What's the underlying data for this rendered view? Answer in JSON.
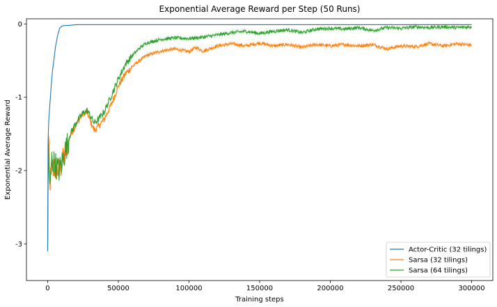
{
  "chart_data": {
    "type": "line",
    "title": "Exponential Average Reward per Step (50 Runs)",
    "xlabel": "Training steps",
    "ylabel": "Exponential Average Reward",
    "xlim": [
      -15000,
      315000
    ],
    "ylim": [
      -3.5,
      0.07
    ],
    "x_ticks": [
      0,
      50000,
      100000,
      150000,
      200000,
      250000,
      300000
    ],
    "x_tick_labels": [
      "0",
      "50000",
      "100000",
      "150000",
      "200000",
      "250000",
      "300000"
    ],
    "y_ticks": [
      0,
      -1,
      -2,
      -3
    ],
    "y_tick_labels": [
      "0",
      "-1",
      "-2",
      "-3"
    ],
    "grid": false,
    "legend_position": "lower-right",
    "series": [
      {
        "name": "Actor-Critic (32 tilings)",
        "color": "#1f77b4",
        "x": [
          0,
          300,
          800,
          1500,
          2500,
          3500,
          4500,
          5500,
          7000,
          8500,
          10000,
          12000,
          15000,
          20000,
          25000,
          40000,
          80000,
          150000,
          220000,
          300000
        ],
        "y": [
          -3.1,
          -1.6,
          -1.3,
          -1.12,
          -0.85,
          -0.62,
          -0.48,
          -0.32,
          -0.16,
          -0.06,
          -0.03,
          -0.02,
          -0.02,
          -0.01,
          -0.01,
          -0.01,
          -0.01,
          -0.01,
          -0.01,
          -0.01
        ]
      },
      {
        "name": "Sarsa (32 tilings)",
        "color": "#ff7f0e",
        "x": [
          0,
          500,
          1500,
          3000,
          5000,
          8000,
          10000,
          13000,
          16000,
          20000,
          25000,
          28000,
          30000,
          33000,
          35000,
          40000,
          45000,
          50000,
          55000,
          60000,
          65000,
          70000,
          80000,
          90000,
          100000,
          105000,
          110000,
          120000,
          130000,
          140000,
          150000,
          160000,
          170000,
          180000,
          190000,
          200000,
          210000,
          220000,
          230000,
          240000,
          250000,
          260000,
          270000,
          280000,
          290000,
          300000
        ],
        "y": [
          -3.1,
          -1.5,
          -2.2,
          -1.95,
          -1.97,
          -2.0,
          -1.92,
          -1.72,
          -1.52,
          -1.38,
          -1.22,
          -1.2,
          -1.32,
          -1.45,
          -1.42,
          -1.3,
          -1.1,
          -0.85,
          -0.68,
          -0.58,
          -0.5,
          -0.43,
          -0.37,
          -0.34,
          -0.38,
          -0.32,
          -0.37,
          -0.3,
          -0.27,
          -0.3,
          -0.26,
          -0.3,
          -0.28,
          -0.32,
          -0.28,
          -0.3,
          -0.28,
          -0.3,
          -0.28,
          -0.34,
          -0.3,
          -0.31,
          -0.27,
          -0.3,
          -0.27,
          -0.29
        ]
      },
      {
        "name": "Sarsa (64 tilings)",
        "color": "#2ca02c",
        "x": [
          0,
          500,
          1500,
          3000,
          5000,
          8000,
          10000,
          13000,
          16000,
          20000,
          25000,
          28000,
          30000,
          33000,
          35000,
          40000,
          45000,
          50000,
          55000,
          60000,
          65000,
          70000,
          80000,
          90000,
          100000,
          110000,
          120000,
          130000,
          140000,
          150000,
          160000,
          170000,
          180000,
          190000,
          200000,
          210000,
          220000,
          230000,
          240000,
          250000,
          260000,
          270000,
          280000,
          290000,
          300000
        ],
        "y": [
          -3.1,
          -1.6,
          -2.3,
          -1.85,
          -1.9,
          -2.0,
          -1.9,
          -1.7,
          -1.5,
          -1.35,
          -1.22,
          -1.18,
          -1.25,
          -1.35,
          -1.32,
          -1.2,
          -0.98,
          -0.75,
          -0.55,
          -0.43,
          -0.33,
          -0.26,
          -0.21,
          -0.19,
          -0.2,
          -0.18,
          -0.15,
          -0.12,
          -0.1,
          -0.13,
          -0.1,
          -0.08,
          -0.12,
          -0.07,
          -0.06,
          -0.07,
          -0.05,
          -0.09,
          -0.05,
          -0.06,
          -0.04,
          -0.05,
          -0.04,
          -0.05,
          -0.04
        ]
      }
    ]
  }
}
